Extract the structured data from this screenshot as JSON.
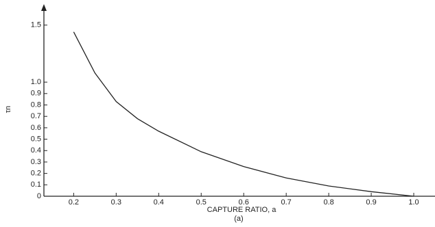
{
  "chart_data": {
    "type": "line",
    "xlabel": "CAPTURE RATIO, a",
    "caption": "(a)",
    "ylabel": "τn",
    "x": [
      0.2,
      0.25,
      0.3,
      0.35,
      0.4,
      0.5,
      0.6,
      0.7,
      0.8,
      0.9,
      1.0
    ],
    "series": [
      {
        "name": "τn",
        "color": "#222222",
        "values": [
          1.44,
          1.08,
          0.83,
          0.68,
          0.57,
          0.39,
          0.26,
          0.16,
          0.09,
          0.04,
          0.0
        ]
      }
    ],
    "xlim": [
      0.13,
      1.05
    ],
    "ylim": [
      0,
      1.66
    ],
    "xticks": [
      0.2,
      0.3,
      0.4,
      0.5,
      0.6,
      0.7,
      0.8,
      0.9,
      {
        "value": 1,
        "label": "1.0"
      }
    ],
    "yticks": [
      0,
      0.1,
      0.2,
      0.3,
      0.4,
      0.5,
      0.6,
      0.7,
      0.8,
      0.9,
      {
        "value": 1,
        "label": "1.0"
      },
      1.5
    ],
    "grid": false
  }
}
